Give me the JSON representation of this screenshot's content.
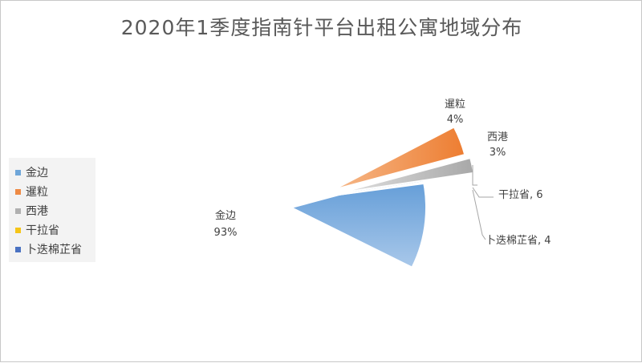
{
  "chart_data": {
    "type": "pie",
    "title": "2020年1季度指南针平台出租公寓地域分布",
    "categories": [
      "金边",
      "暹粒",
      "西港",
      "干拉省",
      "卜迭棉芷省"
    ],
    "values": [
      93,
      4,
      3,
      6,
      4
    ],
    "data_labels": [
      {
        "name": "金边",
        "value": "93%"
      },
      {
        "name": "暹粒",
        "value": "4%"
      },
      {
        "name": "西港",
        "value": "3%"
      },
      {
        "name": "干拉省",
        "value": "干拉省, 6"
      },
      {
        "name": "卜迭棉芷省",
        "value": "卜迭棉芷省, 4"
      }
    ],
    "colors": [
      "#6fa6d9",
      "#ee8a44",
      "#b0b0b0",
      "#f5c518",
      "#4a72c2"
    ],
    "legend_position": "left",
    "exploded": true
  }
}
